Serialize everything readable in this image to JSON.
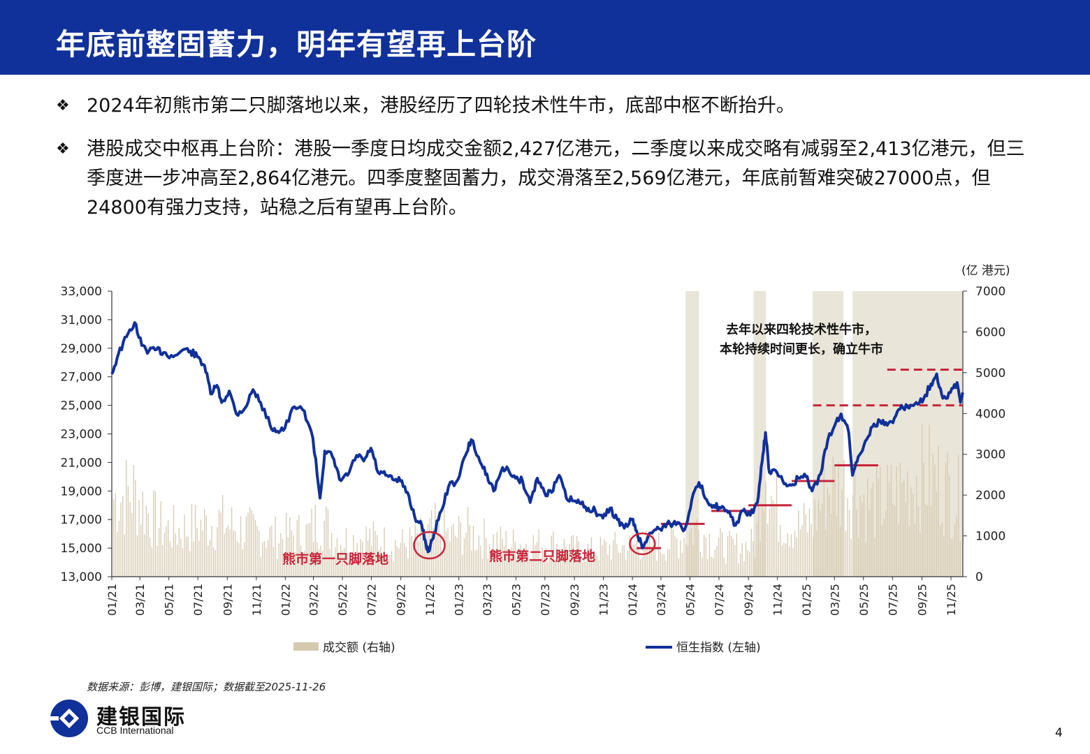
{
  "header": {
    "title": "年底前整固蓄力，明年有望再上台阶"
  },
  "bullets": [
    {
      "mark": "❖",
      "text": "2024年初熊市第二只脚落地以来，港股经历了四轮技术性牛市，底部中枢不断抬升。"
    },
    {
      "mark": "❖",
      "text": "港股成交中枢再上台阶：港股一季度日均成交金额2,427亿港元，二季度以来成交略有减弱至2,413亿港元，但三季度进一步冲高至2,864亿港元。四季度整固蓄力，成交滑落至2,569亿港元，年底前暂难突破27000点，但24800有强力支持，站稳之后有望再上台阶。"
    }
  ],
  "source": "数据来源：彭博，建银国际；数据截至2025-11-26",
  "logo": {
    "cn": "建银国际",
    "en": "CCB International"
  },
  "page_number": "4",
  "colors": {
    "title_bar": "#10309a",
    "index_line": "#10309a",
    "volume": "#d6c9b0",
    "annotation": "#c8243a",
    "shade": "#e2dccb"
  },
  "chart_data": {
    "type": "line",
    "right_unit": "(亿 港元)",
    "y_left": {
      "ticks": [
        "33,000",
        "31,000",
        "29,000",
        "27,000",
        "25,000",
        "23,000",
        "21,000",
        "19,000",
        "17,000",
        "15,000",
        "13,000"
      ],
      "range": [
        13000,
        33000
      ]
    },
    "y_right": {
      "ticks": [
        "7000",
        "6000",
        "5000",
        "4000",
        "3000",
        "2000",
        "1000",
        "0"
      ],
      "range": [
        0,
        7000
      ]
    },
    "x_ticks": [
      "01/21",
      "03/21",
      "05/21",
      "07/21",
      "09/21",
      "11/21",
      "01/22",
      "03/22",
      "05/22",
      "07/22",
      "09/22",
      "11/22",
      "01/23",
      "03/23",
      "05/23",
      "07/23",
      "09/23",
      "11/23",
      "01/24",
      "03/24",
      "05/24",
      "07/24",
      "09/24",
      "11/24",
      "01/25",
      "03/25",
      "05/25",
      "07/25",
      "09/25",
      "11/25"
    ],
    "x_range": [
      "2021-01-01",
      "2025-11-26"
    ],
    "legend": [
      "成交额 (右轴)",
      "恒生指数 (左轴)"
    ],
    "annotations": [
      "去年以来四轮技术性牛市，",
      "本轮持续时间更长，确立牛市",
      "熊市第一只脚落地",
      "熊市第二只脚落地"
    ],
    "series": [
      {
        "name": "恒生指数 (左轴)",
        "axis": "left",
        "points": [
          [
            "2021-01-01",
            27200
          ],
          [
            "2021-01-15",
            28600
          ],
          [
            "2021-02-01",
            29800
          ],
          [
            "2021-02-18",
            30800
          ],
          [
            "2021-03-05",
            29200
          ],
          [
            "2021-03-20",
            28800
          ],
          [
            "2021-04-05",
            28900
          ],
          [
            "2021-04-20",
            28700
          ],
          [
            "2021-05-10",
            28400
          ],
          [
            "2021-05-31",
            28900
          ],
          [
            "2021-06-15",
            28800
          ],
          [
            "2021-06-30",
            28400
          ],
          [
            "2021-07-15",
            27800
          ],
          [
            "2021-07-28",
            25800
          ],
          [
            "2021-08-10",
            26400
          ],
          [
            "2021-08-20",
            25200
          ],
          [
            "2021-09-05",
            26000
          ],
          [
            "2021-09-20",
            24400
          ],
          [
            "2021-10-08",
            24800
          ],
          [
            "2021-10-25",
            26100
          ],
          [
            "2021-11-10",
            25200
          ],
          [
            "2021-11-30",
            23600
          ],
          [
            "2021-12-15",
            23200
          ],
          [
            "2021-12-31",
            23400
          ],
          [
            "2022-01-20",
            24900
          ],
          [
            "2022-02-10",
            24600
          ],
          [
            "2022-02-28",
            22700
          ],
          [
            "2022-03-15",
            18500
          ],
          [
            "2022-03-25",
            21800
          ],
          [
            "2022-04-10",
            21400
          ],
          [
            "2022-04-25",
            19800
          ],
          [
            "2022-05-12",
            20100
          ],
          [
            "2022-05-31",
            21500
          ],
          [
            "2022-06-15",
            21100
          ],
          [
            "2022-06-30",
            22000
          ],
          [
            "2022-07-15",
            20300
          ],
          [
            "2022-07-31",
            20100
          ],
          [
            "2022-08-15",
            19800
          ],
          [
            "2022-08-31",
            19700
          ],
          [
            "2022-09-15",
            18900
          ],
          [
            "2022-09-30",
            17200
          ],
          [
            "2022-10-15",
            16600
          ],
          [
            "2022-10-24",
            15200
          ],
          [
            "2022-10-31",
            14800
          ],
          [
            "2022-11-10",
            16100
          ],
          [
            "2022-11-25",
            17600
          ],
          [
            "2022-12-10",
            19300
          ],
          [
            "2022-12-30",
            19800
          ],
          [
            "2023-01-15",
            21500
          ],
          [
            "2023-01-27",
            22600
          ],
          [
            "2023-02-15",
            21000
          ],
          [
            "2023-03-01",
            20200
          ],
          [
            "2023-03-15",
            19000
          ],
          [
            "2023-03-31",
            20400
          ],
          [
            "2023-04-15",
            20500
          ],
          [
            "2023-04-30",
            19900
          ],
          [
            "2023-05-15",
            19700
          ],
          [
            "2023-05-31",
            18200
          ],
          [
            "2023-06-15",
            19900
          ],
          [
            "2023-06-30",
            18900
          ],
          [
            "2023-07-15",
            18900
          ],
          [
            "2023-07-31",
            20100
          ],
          [
            "2023-08-15",
            18500
          ],
          [
            "2023-08-31",
            18300
          ],
          [
            "2023-09-15",
            18100
          ],
          [
            "2023-09-30",
            17800
          ],
          [
            "2023-10-15",
            17600
          ],
          [
            "2023-10-31",
            17100
          ],
          [
            "2023-11-15",
            17800
          ],
          [
            "2023-11-30",
            17000
          ],
          [
            "2023-12-15",
            16400
          ],
          [
            "2023-12-31",
            17000
          ],
          [
            "2024-01-10",
            16200
          ],
          [
            "2024-01-22",
            15000
          ],
          [
            "2024-02-05",
            16000
          ],
          [
            "2024-02-20",
            16300
          ],
          [
            "2024-03-05",
            16500
          ],
          [
            "2024-03-20",
            16700
          ],
          [
            "2024-04-05",
            16800
          ],
          [
            "2024-04-20",
            16300
          ],
          [
            "2024-05-05",
            18400
          ],
          [
            "2024-05-20",
            19600
          ],
          [
            "2024-06-05",
            18400
          ],
          [
            "2024-06-20",
            18000
          ],
          [
            "2024-07-05",
            17800
          ],
          [
            "2024-07-20",
            17500
          ],
          [
            "2024-08-05",
            16600
          ],
          [
            "2024-08-20",
            17600
          ],
          [
            "2024-09-05",
            17300
          ],
          [
            "2024-09-20",
            18200
          ],
          [
            "2024-09-30",
            21100
          ],
          [
            "2024-10-07",
            23100
          ],
          [
            "2024-10-15",
            20300
          ],
          [
            "2024-10-31",
            20300
          ],
          [
            "2024-11-15",
            19500
          ],
          [
            "2024-11-30",
            19400
          ],
          [
            "2024-12-15",
            19900
          ],
          [
            "2024-12-31",
            20000
          ],
          [
            "2025-01-13",
            19000
          ],
          [
            "2025-01-31",
            20200
          ],
          [
            "2025-02-15",
            22600
          ],
          [
            "2025-03-05",
            23900
          ],
          [
            "2025-03-15",
            24400
          ],
          [
            "2025-03-31",
            23100
          ],
          [
            "2025-04-08",
            20100
          ],
          [
            "2025-04-20",
            21400
          ],
          [
            "2025-05-05",
            22500
          ],
          [
            "2025-05-20",
            23500
          ],
          [
            "2025-06-05",
            23900
          ],
          [
            "2025-06-20",
            23600
          ],
          [
            "2025-07-05",
            24100
          ],
          [
            "2025-07-20",
            25000
          ],
          [
            "2025-08-05",
            24800
          ],
          [
            "2025-08-20",
            25200
          ],
          [
            "2025-09-05",
            25500
          ],
          [
            "2025-09-20",
            26500
          ],
          [
            "2025-10-02",
            27200
          ],
          [
            "2025-10-15",
            25500
          ],
          [
            "2025-10-31",
            25900
          ],
          [
            "2025-11-14",
            26600
          ],
          [
            "2025-11-21",
            25200
          ],
          [
            "2025-11-26",
            25900
          ]
        ]
      },
      {
        "name": "成交额 (右轴)",
        "axis": "right",
        "style": "volume-bars",
        "points": [
          [
            "2021-01-15",
            2400
          ],
          [
            "2021-02-15",
            2600
          ],
          [
            "2021-03-15",
            2000
          ],
          [
            "2021-04-15",
            1500
          ],
          [
            "2021-05-15",
            1400
          ],
          [
            "2021-06-15",
            1500
          ],
          [
            "2021-07-15",
            1600
          ],
          [
            "2021-08-15",
            1700
          ],
          [
            "2021-09-15",
            1500
          ],
          [
            "2021-10-15",
            1400
          ],
          [
            "2021-11-15",
            1300
          ],
          [
            "2021-12-15",
            1200
          ],
          [
            "2022-01-15",
            1300
          ],
          [
            "2022-02-15",
            1300
          ],
          [
            "2022-03-15",
            1800
          ],
          [
            "2022-04-15",
            1200
          ],
          [
            "2022-05-15",
            1100
          ],
          [
            "2022-06-15",
            1200
          ],
          [
            "2022-07-15",
            1100
          ],
          [
            "2022-08-15",
            1000
          ],
          [
            "2022-09-15",
            1000
          ],
          [
            "2022-10-15",
            1200
          ],
          [
            "2022-11-15",
            1500
          ],
          [
            "2022-12-15",
            1200
          ],
          [
            "2023-01-15",
            1400
          ],
          [
            "2023-02-15",
            1200
          ],
          [
            "2023-03-15",
            1100
          ],
          [
            "2023-04-15",
            1000
          ],
          [
            "2023-05-15",
            1000
          ],
          [
            "2023-06-15",
            1000
          ],
          [
            "2023-07-15",
            1000
          ],
          [
            "2023-08-15",
            900
          ],
          [
            "2023-09-15",
            800
          ],
          [
            "2023-10-15",
            800
          ],
          [
            "2023-11-15",
            900
          ],
          [
            "2023-12-15",
            900
          ],
          [
            "2024-01-15",
            1000
          ],
          [
            "2024-02-15",
            900
          ],
          [
            "2024-03-15",
            1000
          ],
          [
            "2024-04-15",
            1200
          ],
          [
            "2024-05-15",
            1500
          ],
          [
            "2024-06-15",
            1100
          ],
          [
            "2024-07-15",
            900
          ],
          [
            "2024-08-15",
            900
          ],
          [
            "2024-09-15",
            1000
          ],
          [
            "2024-10-05",
            3800
          ],
          [
            "2024-10-20",
            2300
          ],
          [
            "2024-11-15",
            1700
          ],
          [
            "2024-12-15",
            1500
          ],
          [
            "2025-01-15",
            1700
          ],
          [
            "2025-02-15",
            2800
          ],
          [
            "2025-03-15",
            2800
          ],
          [
            "2025-04-15",
            2600
          ],
          [
            "2025-05-15",
            2200
          ],
          [
            "2025-06-15",
            2300
          ],
          [
            "2025-07-15",
            2600
          ],
          [
            "2025-08-15",
            3000
          ],
          [
            "2025-09-15",
            3100
          ],
          [
            "2025-10-15",
            2800
          ],
          [
            "2025-11-15",
            2400
          ]
        ]
      }
    ],
    "shaded_periods": [
      [
        "2024-04-22",
        "2024-05-20"
      ],
      [
        "2024-09-12",
        "2024-10-08"
      ],
      [
        "2025-01-14",
        "2025-03-20"
      ],
      [
        "2025-04-08",
        "2025-11-26"
      ]
    ],
    "support_levels": [
      {
        "value": 15000,
        "from": "2024-01-10",
        "to": "2024-03-01",
        "style": "solid"
      },
      {
        "value": 16700,
        "from": "2024-03-01",
        "to": "2024-06-01",
        "style": "solid"
      },
      {
        "value": 17600,
        "from": "2024-06-15",
        "to": "2024-09-15",
        "style": "solid"
      },
      {
        "value": 18000,
        "from": "2024-09-01",
        "to": "2024-12-01",
        "style": "solid"
      },
      {
        "value": 19700,
        "from": "2024-12-01",
        "to": "2025-03-01",
        "style": "solid"
      },
      {
        "value": 20800,
        "from": "2025-03-01",
        "to": "2025-06-01",
        "style": "solid"
      },
      {
        "value": 25000,
        "from": "2025-01-15",
        "to": "2025-11-26",
        "style": "dashed"
      },
      {
        "value": 27500,
        "from": "2025-06-20",
        "to": "2025-11-26",
        "style": "dashed"
      }
    ]
  }
}
